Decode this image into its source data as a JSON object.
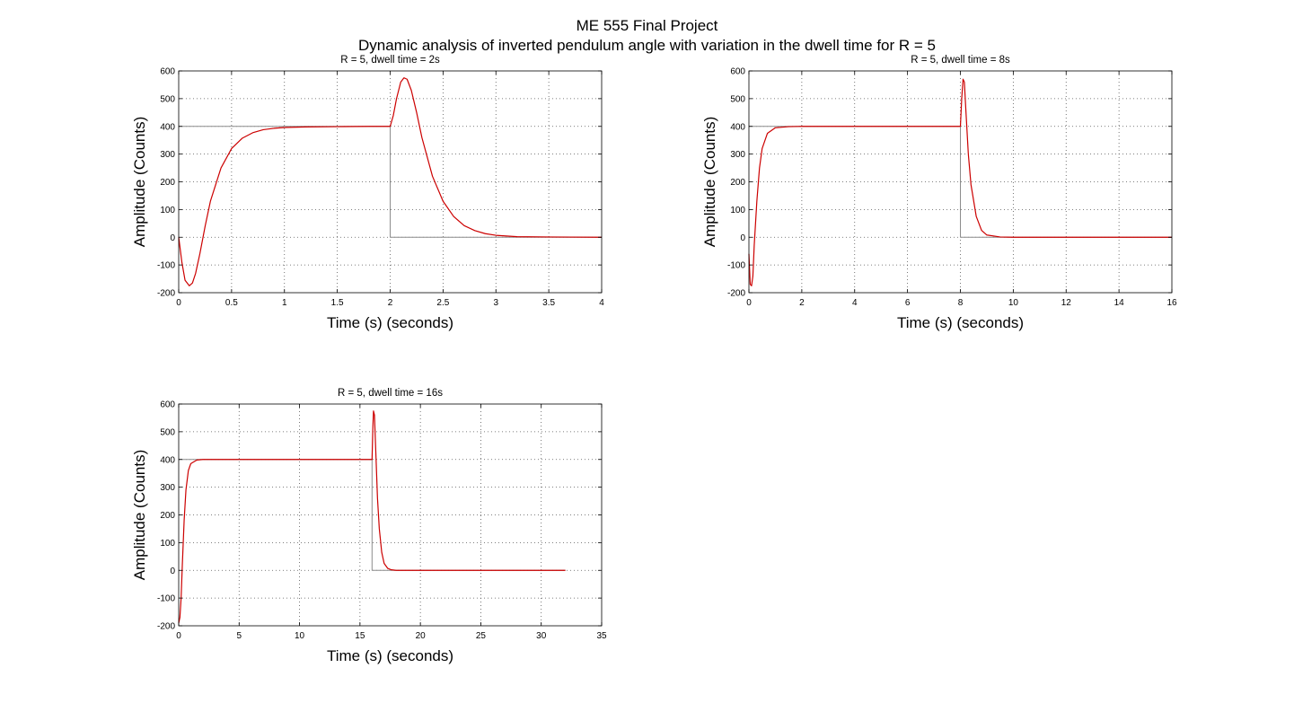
{
  "figure": {
    "title_line1": "ME 555 Final Project",
    "title_line2": "Dynamic analysis of inverted pendulum angle with variation in the dwell time for R = 5"
  },
  "colors": {
    "response": "#cc0000",
    "reference": "#8c8c8c",
    "grid": "#555555",
    "axes": "#000000"
  },
  "chart_data": [
    {
      "type": "line",
      "title": "R = 5, dwell time = 2s",
      "xlabel": "Time (s) (seconds)",
      "ylabel": "Amplitude (Counts)",
      "xlim": [
        0,
        4
      ],
      "ylim": [
        -200,
        600
      ],
      "xticks": [
        0,
        0.5,
        1,
        1.5,
        2,
        2.5,
        3,
        3.5,
        4
      ],
      "xtick_labels": [
        "0",
        "0.5",
        "1",
        "1.5",
        "2",
        "2.5",
        "3",
        "3.5",
        "4"
      ],
      "yticks": [
        -200,
        -100,
        0,
        100,
        200,
        300,
        400,
        500,
        600
      ],
      "grid": true,
      "series": [
        {
          "role": "reference",
          "x": [
            0,
            2,
            2,
            4
          ],
          "y": [
            400,
            400,
            0,
            0
          ]
        },
        {
          "role": "response",
          "x": [
            0,
            0.03,
            0.06,
            0.1,
            0.13,
            0.16,
            0.2,
            0.25,
            0.3,
            0.4,
            0.5,
            0.6,
            0.7,
            0.8,
            0.9,
            1.0,
            1.2,
            1.5,
            1.8,
            2.0,
            2.03,
            2.06,
            2.1,
            2.13,
            2.16,
            2.2,
            2.25,
            2.3,
            2.4,
            2.5,
            2.6,
            2.7,
            2.8,
            2.9,
            3.0,
            3.2,
            3.5,
            4.0
          ],
          "y": [
            0,
            -90,
            -155,
            -175,
            -165,
            -130,
            -60,
            40,
            130,
            250,
            320,
            357,
            377,
            388,
            393,
            396,
            398,
            399,
            400,
            400,
            440,
            500,
            560,
            575,
            570,
            530,
            450,
            360,
            220,
            130,
            75,
            42,
            24,
            13,
            7,
            2,
            1,
            0
          ]
        }
      ]
    },
    {
      "type": "line",
      "title": "R = 5, dwell time = 8s",
      "xlabel": "Time (s) (seconds)",
      "ylabel": "Amplitude (Counts)",
      "xlim": [
        0,
        16
      ],
      "ylim": [
        -200,
        600
      ],
      "xticks": [
        0,
        2,
        4,
        6,
        8,
        10,
        12,
        14,
        16
      ],
      "xtick_labels": [
        "0",
        "2",
        "4",
        "6",
        "8",
        "10",
        "12",
        "14",
        "16"
      ],
      "yticks": [
        -200,
        -100,
        0,
        100,
        200,
        300,
        400,
        500,
        600
      ],
      "grid": true,
      "series": [
        {
          "role": "reference",
          "x": [
            0,
            8,
            8,
            16
          ],
          "y": [
            400,
            400,
            0,
            0
          ]
        },
        {
          "role": "response",
          "x": [
            0,
            0.05,
            0.1,
            0.15,
            0.2,
            0.3,
            0.4,
            0.5,
            0.7,
            1.0,
            1.5,
            2.0,
            4.0,
            8.0,
            8.05,
            8.1,
            8.15,
            8.2,
            8.3,
            8.4,
            8.6,
            8.8,
            9.0,
            9.5,
            10,
            16
          ],
          "y": [
            -60,
            -170,
            -175,
            -140,
            -30,
            130,
            250,
            320,
            375,
            395,
            399,
            400,
            400,
            400,
            500,
            570,
            560,
            470,
            300,
            190,
            75,
            25,
            8,
            1,
            0,
            0
          ]
        }
      ]
    },
    {
      "type": "line",
      "title": "R = 5, dwell time = 16s",
      "xlabel": "Time (s) (seconds)",
      "ylabel": "Amplitude (Counts)",
      "xlim": [
        0,
        35
      ],
      "ylim": [
        -200,
        600
      ],
      "xticks": [
        0,
        5,
        10,
        15,
        20,
        25,
        30,
        35
      ],
      "xtick_labels": [
        "0",
        "5",
        "10",
        "15",
        "20",
        "25",
        "30",
        "35"
      ],
      "yticks": [
        -200,
        -100,
        0,
        100,
        200,
        300,
        400,
        500,
        600
      ],
      "grid": true,
      "series": [
        {
          "role": "reference",
          "x": [
            0,
            16,
            16,
            32
          ],
          "y": [
            400,
            400,
            0,
            0
          ]
        },
        {
          "role": "response",
          "x": [
            0,
            0.1,
            0.2,
            0.3,
            0.45,
            0.6,
            0.8,
            1.0,
            1.5,
            2.0,
            16.0,
            16.07,
            16.12,
            16.2,
            16.3,
            16.45,
            16.6,
            16.8,
            17.0,
            17.3,
            17.6,
            18.0,
            32
          ],
          "y": [
            -190,
            -170,
            -100,
            20,
            180,
            290,
            360,
            385,
            398,
            400,
            400,
            520,
            575,
            560,
            440,
            260,
            150,
            65,
            25,
            7,
            2,
            0,
            0
          ]
        }
      ]
    }
  ]
}
